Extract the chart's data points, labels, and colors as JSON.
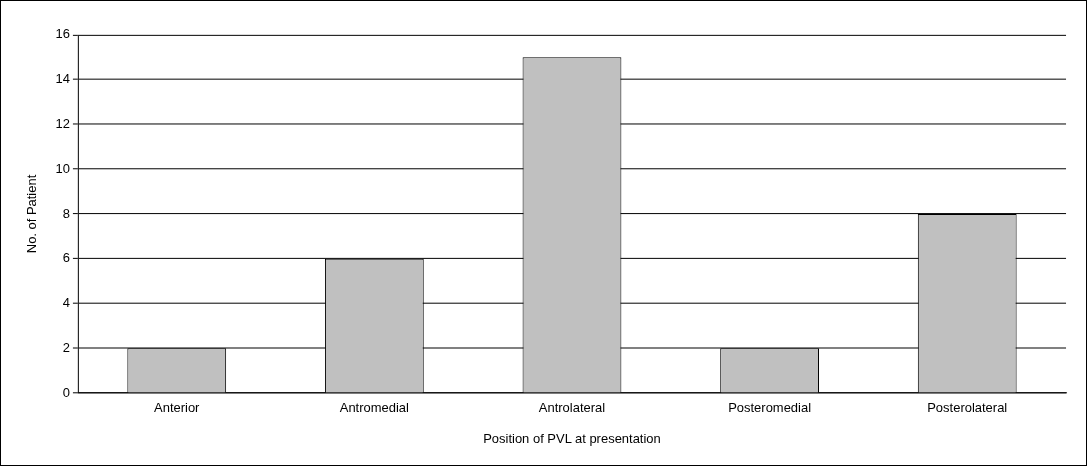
{
  "chart_data": {
    "type": "bar",
    "xlabel": "Position of PVL at presentation",
    "ylabel": "No. of Patient",
    "categories": [
      "Anterior",
      "Antromedial",
      "Antrolateral",
      "Posteromedial",
      "Posterolateral"
    ],
    "values": [
      2,
      6,
      15,
      2,
      8
    ],
    "color": "#c0c0c0",
    "ylim": [
      0,
      16
    ],
    "yticks": [
      0,
      2,
      4,
      6,
      8,
      10,
      12,
      14,
      16
    ],
    "grid": "y",
    "legend": false
  }
}
